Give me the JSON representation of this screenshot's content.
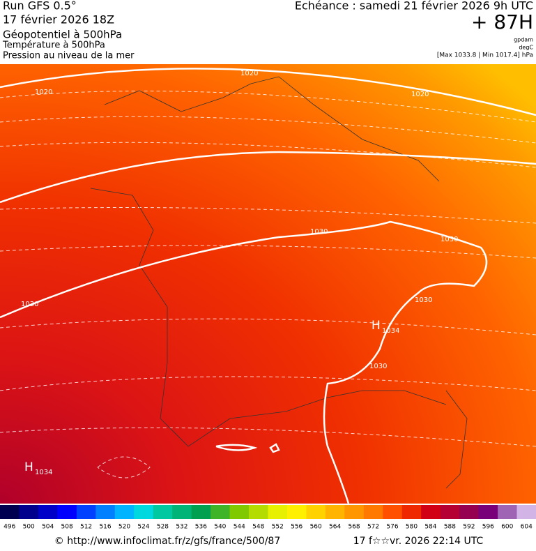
{
  "header": {
    "run": "Run GFS 0.5°",
    "date": "17 février 2026 18Z",
    "field1": "Géopotentiel à 500hPa",
    "field2": "Température à 500hPa",
    "field3": "Pression au niveau de la mer",
    "echeance": "Echéance : samedi 21 février 2026 9h UTC",
    "offset": "+ 87H",
    "unit1": "gpdam",
    "unit2": "degC",
    "range": "[Max 1033.8 | Min 1017.4] hPa"
  },
  "map": {
    "isobar_labels": [
      "1020",
      "1020",
      "1020",
      "1030",
      "1030",
      "1030",
      "1030",
      "1030"
    ],
    "highs": [
      {
        "symbol": "H",
        "value": "1034"
      },
      {
        "symbol": "H",
        "value": "1034"
      }
    ]
  },
  "legend": {
    "labels": [
      496,
      500,
      504,
      508,
      512,
      516,
      520,
      524,
      528,
      532,
      536,
      540,
      544,
      548,
      552,
      556,
      560,
      564,
      568,
      572,
      576,
      580,
      584,
      588,
      592,
      596,
      600,
      604
    ],
    "colors": [
      "#000050",
      "#00008c",
      "#0000c8",
      "#0000ff",
      "#0040ff",
      "#0080ff",
      "#00b4ff",
      "#00d8e0",
      "#00c8a0",
      "#00b478",
      "#00a050",
      "#40b428",
      "#80c800",
      "#b4dc00",
      "#e6f000",
      "#fff000",
      "#ffd200",
      "#ffb400",
      "#ff9600",
      "#ff7800",
      "#ff5000",
      "#f02800",
      "#d20014",
      "#b40032",
      "#960050",
      "#780078",
      "#a064b4",
      "#d2b4e6"
    ]
  },
  "footer": {
    "url": "© http://www.infoclimat.fr/z/gfs/france/500/87",
    "stamp": "17 f☆☆vr. 2026 22:14 UTC"
  }
}
